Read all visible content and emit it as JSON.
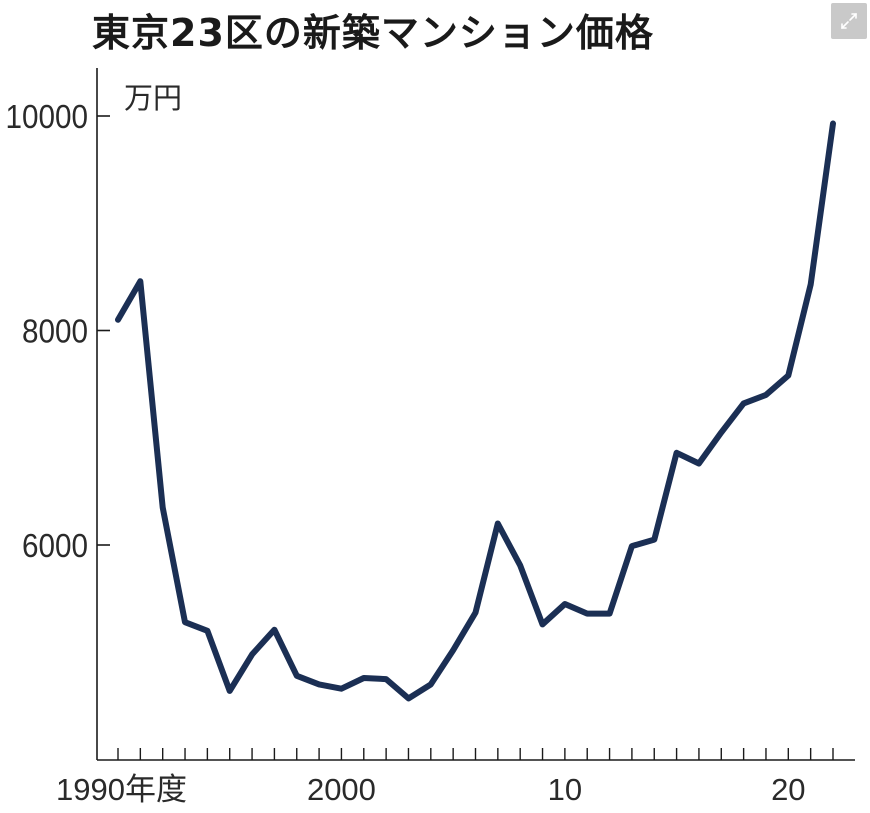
{
  "title": "東京23区の新築マンション価格",
  "expand_icon": "expand-icon",
  "chart_data": {
    "type": "line",
    "title": "東京23区の新築マンション価格",
    "ylabel": "万円",
    "xlabel": "",
    "ylim": [
      4500,
      10200
    ],
    "xlim": [
      1990,
      2023
    ],
    "yticks": [
      6000,
      8000,
      10000
    ],
    "ytick_labels": [
      "6000",
      "8000",
      "10000"
    ],
    "xticks": [
      1990,
      2000,
      2010,
      2020
    ],
    "xtick_labels": [
      "1990年度",
      "2000",
      "10",
      "20"
    ],
    "line_color": "#1b2f54",
    "series": [
      {
        "x": [
          1990,
          1991,
          1992,
          1993,
          1994,
          1995,
          1996,
          1997,
          1998,
          1999,
          2000,
          2001,
          2002,
          2003,
          2004,
          2005,
          2006,
          2007,
          2008,
          2009,
          2010,
          2011,
          2012,
          2013,
          2014,
          2015,
          2016,
          2017,
          2018,
          2019,
          2020,
          2021,
          2022
        ],
        "values": [
          8100,
          8460,
          6350,
          5280,
          5200,
          4640,
          4980,
          5210,
          4780,
          4700,
          4660,
          4760,
          4750,
          4570,
          4700,
          5020,
          5370,
          6200,
          5810,
          5260,
          5450,
          5360,
          5360,
          5990,
          6050,
          6860,
          6760,
          7050,
          7320,
          7400,
          7580,
          8430,
          9930
        ]
      }
    ]
  }
}
